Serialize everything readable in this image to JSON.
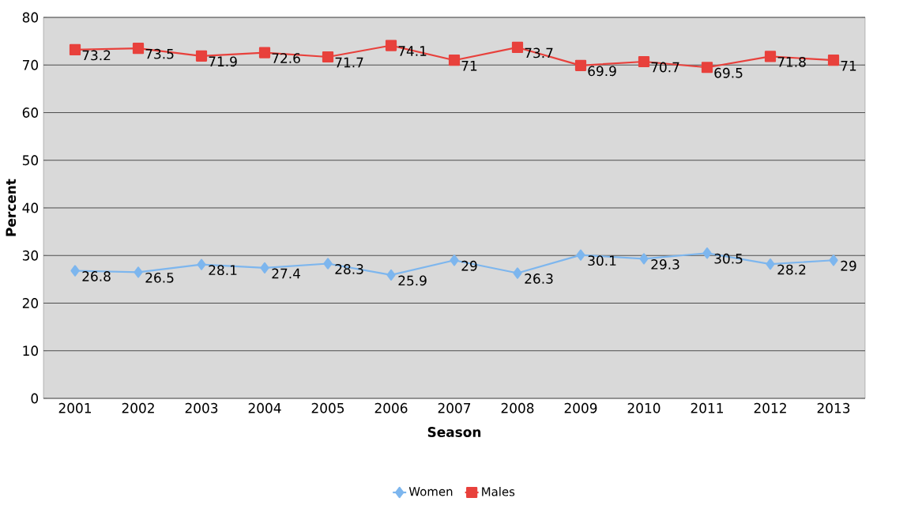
{
  "chart_data": {
    "type": "line",
    "xlabel": "Season",
    "ylabel": "Percent",
    "categories": [
      "2001",
      "2002",
      "2003",
      "2004",
      "2005",
      "2006",
      "2007",
      "2008",
      "2009",
      "2010",
      "2011",
      "2012",
      "2013"
    ],
    "series": [
      {
        "name": "Women",
        "color": "#7db6ee",
        "marker": "diamond",
        "values": [
          26.8,
          26.5,
          28.1,
          27.4,
          28.3,
          25.9,
          29,
          26.3,
          30.1,
          29.3,
          30.5,
          28.2,
          29
        ]
      },
      {
        "name": "Males",
        "color": "#e8413c",
        "marker": "square",
        "values": [
          73.2,
          73.5,
          71.9,
          72.6,
          71.7,
          74.1,
          71,
          73.7,
          69.9,
          70.7,
          69.5,
          71.8,
          71
        ]
      }
    ],
    "ylim": [
      0,
      80
    ],
    "yticks": [
      0,
      10,
      20,
      30,
      40,
      50,
      60,
      70,
      80
    ],
    "grid": "y",
    "legend": "bottom",
    "data_labels": true,
    "line_style": "solid"
  }
}
